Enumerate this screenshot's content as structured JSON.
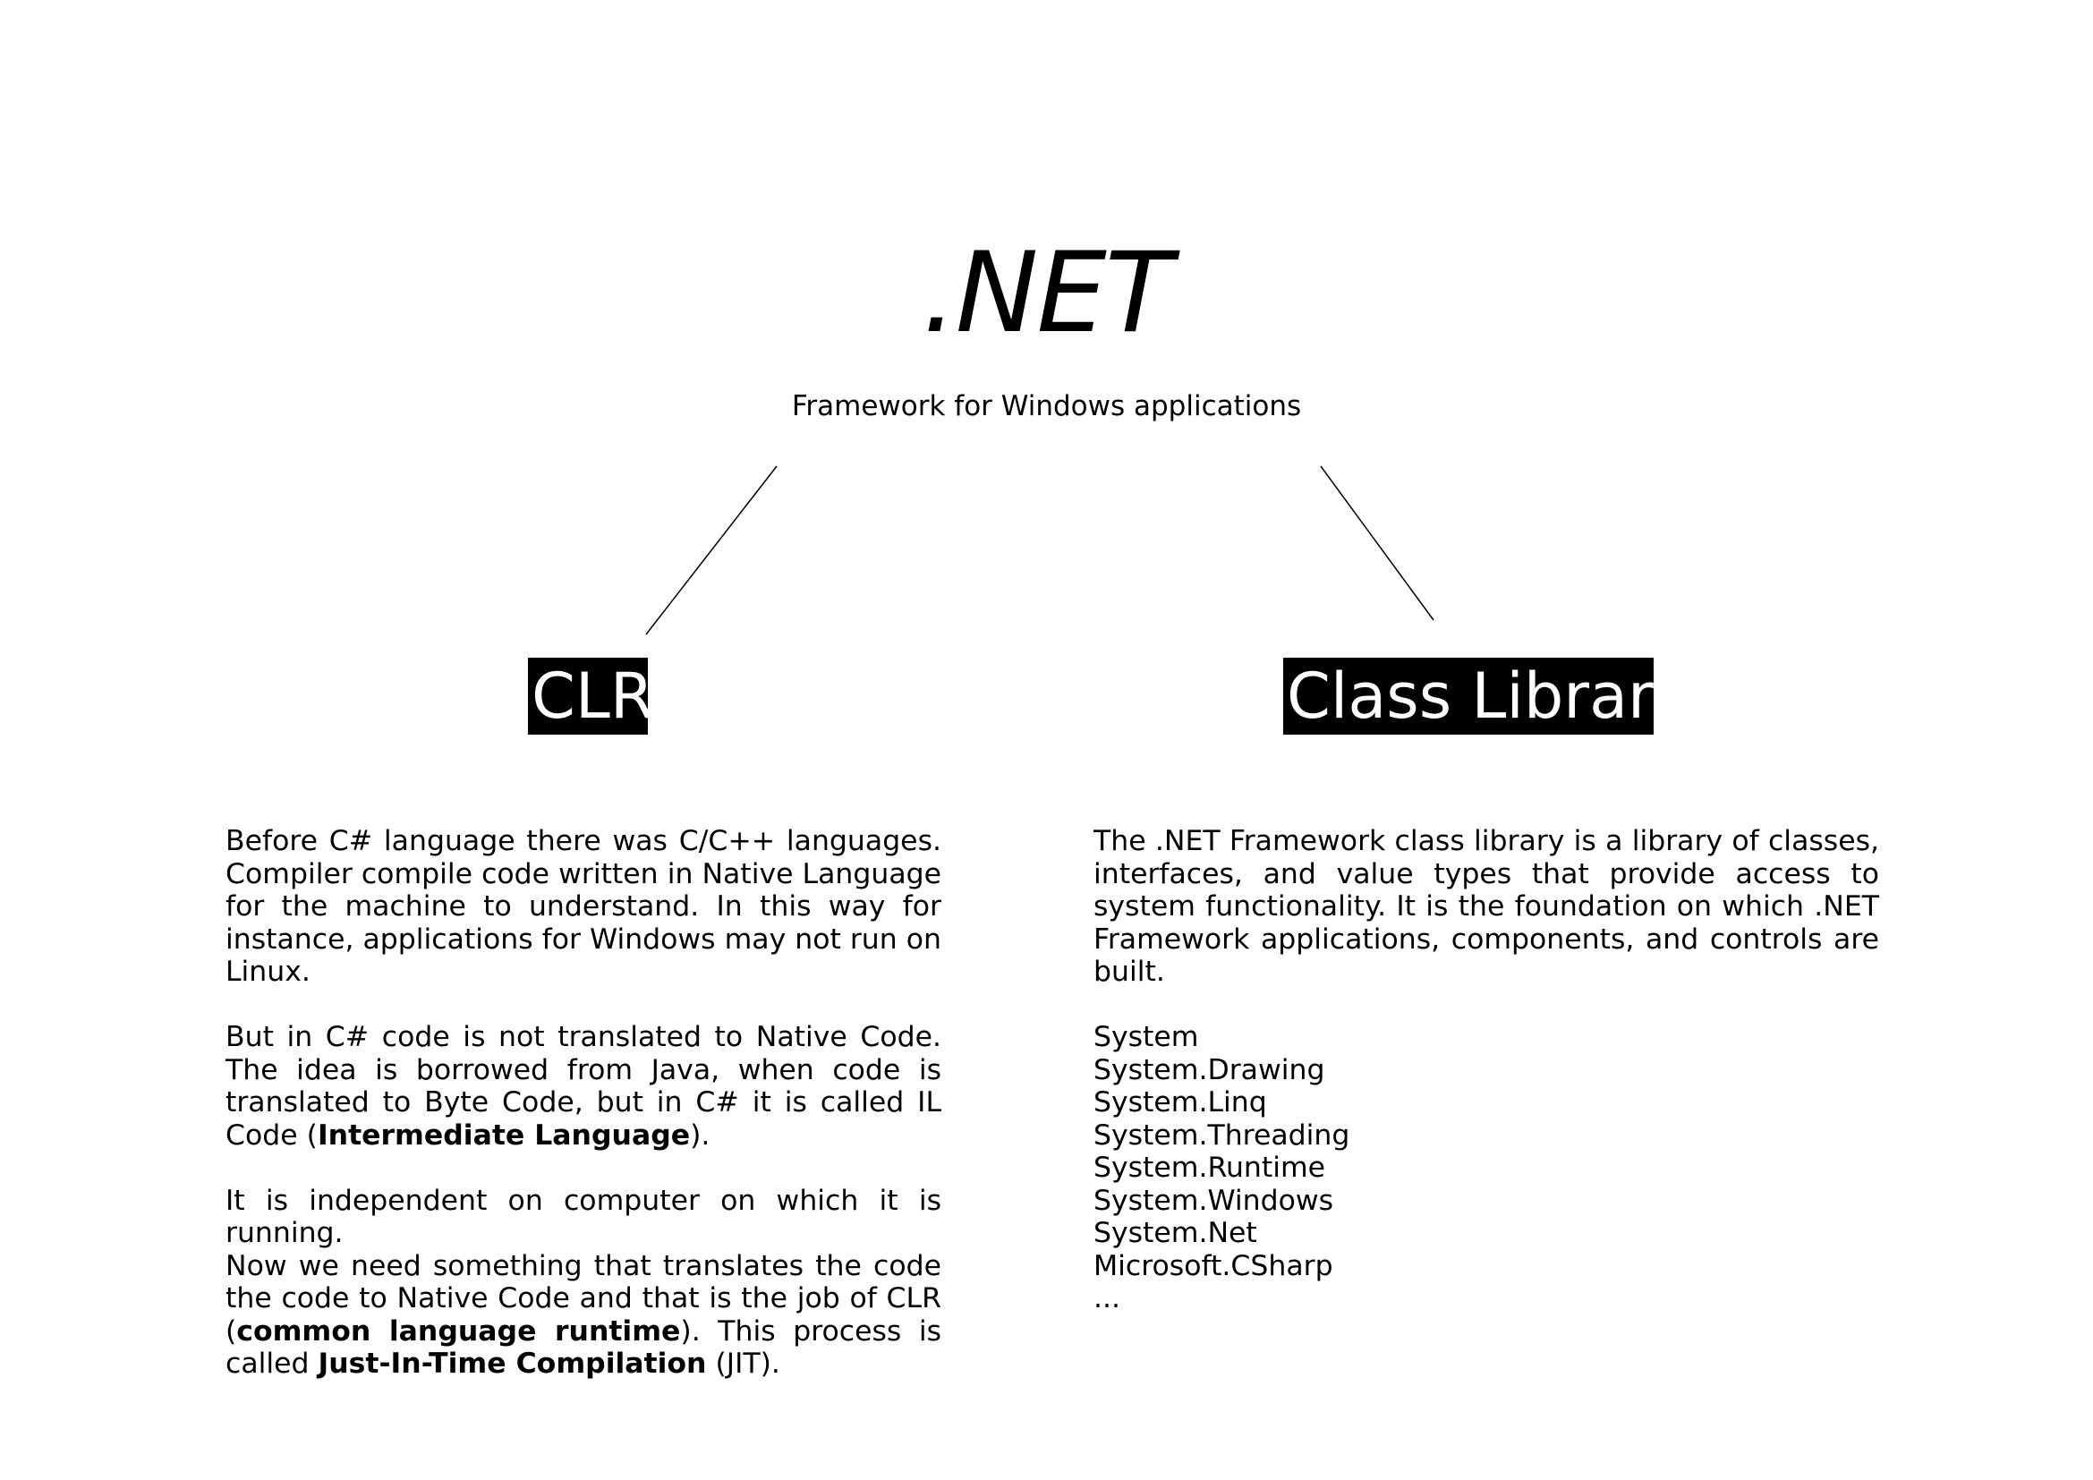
{
  "header": {
    "title": ".NET",
    "subtitle": "Framework for Windows applications"
  },
  "clr": {
    "label": "CLR",
    "paragraph1": "Before C# language there was C/C++ languages. Compiler compile code written in Native Language for the machine to understand. In this way for instance, applications for Windows may not run on Linux.",
    "paragraph2_text": "But in C# code is not translated to Native Code. The idea is borrowed from Java, when code is translated to Byte Code, but in C# it is called IL Code (",
    "paragraph2_bold": "Intermediate Language",
    "paragraph2_end": ").",
    "paragraph3_line1": "It is independent on computer on which it is running.",
    "paragraph3_text": "Now we need something that translates the code the code to Native Code and that is the job of CLR (",
    "paragraph3_bold1": "common language runtime",
    "paragraph3_mid": "). This process is called ",
    "paragraph3_bold2": "Just-In-Time Compilation",
    "paragraph3_end": " (JIT)."
  },
  "class_library": {
    "label": "Class Library",
    "paragraph": "The .NET Framework class library is a library of classes, interfaces, and value types that provide access to system functionality. It is the foundation on which .NET Framework applications, components, and controls are built.",
    "namespaces": [
      "System",
      "System.Drawing",
      "System.Linq",
      "System.Threading",
      "System.Runtime",
      "System.Windows",
      "System.Net",
      "Microsoft.CSharp",
      "..."
    ]
  }
}
